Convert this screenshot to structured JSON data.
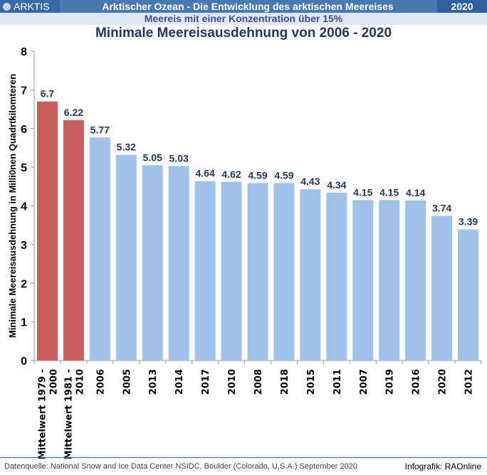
{
  "header": {
    "logo": "ARKTIS",
    "title": "Arktischer Ozean - Die Entwicklung des arktischen Meereises",
    "year": "2020",
    "subtitle": "Meereis mit einer Konzentration über 15%"
  },
  "footer": {
    "source": "Datenquelle: National Snow and Ice Data Center NSIDC, Boulder (Colorado, U.S.A.)  September 2020",
    "credit": "Infografik: RAOnline"
  },
  "colors": {
    "average": "#c9605e",
    "year": "#a0c2ea",
    "label": "#1f3766"
  },
  "chart_data": {
    "type": "bar",
    "title": "Minimale Meereisausdehnung von 2006 - 2020",
    "ylabel": "Minimale Meereisausdehnung in Milli0nen  Quadrtkilomteren",
    "xlabel": "",
    "ylim": [
      0,
      8
    ],
    "yticks": [
      "0",
      "1",
      "2",
      "3",
      "4",
      "5",
      "6",
      "7",
      "8"
    ],
    "categories": [
      [
        "Mittelwert 1979 -",
        "2000"
      ],
      [
        "Mittelwert 1981 -",
        "2010"
      ],
      "2006",
      "2005",
      "2013",
      "2014",
      "2017",
      "2010",
      "2008",
      "2018",
      "2015",
      "2011",
      "2007",
      "2019",
      "2016",
      "2020",
      "2012"
    ],
    "values": [
      6.7,
      6.22,
      5.77,
      5.32,
      5.05,
      5.03,
      4.64,
      4.62,
      4.59,
      4.59,
      4.43,
      4.34,
      4.15,
      4.15,
      4.14,
      3.74,
      3.39
    ],
    "value_labels": [
      "6.7",
      "6.22",
      "5.77",
      "5.32",
      "5.05",
      "5.03",
      "4.64",
      "4.62",
      "4.59",
      "4.59",
      "4.43",
      "4.34",
      "4.15",
      "4.15",
      "4.14",
      "3.74",
      "3.39"
    ],
    "kinds": [
      "average",
      "average",
      "year",
      "year",
      "year",
      "year",
      "year",
      "year",
      "year",
      "year",
      "year",
      "year",
      "year",
      "year",
      "year",
      "year",
      "year"
    ],
    "grid": false,
    "legend": "none"
  }
}
